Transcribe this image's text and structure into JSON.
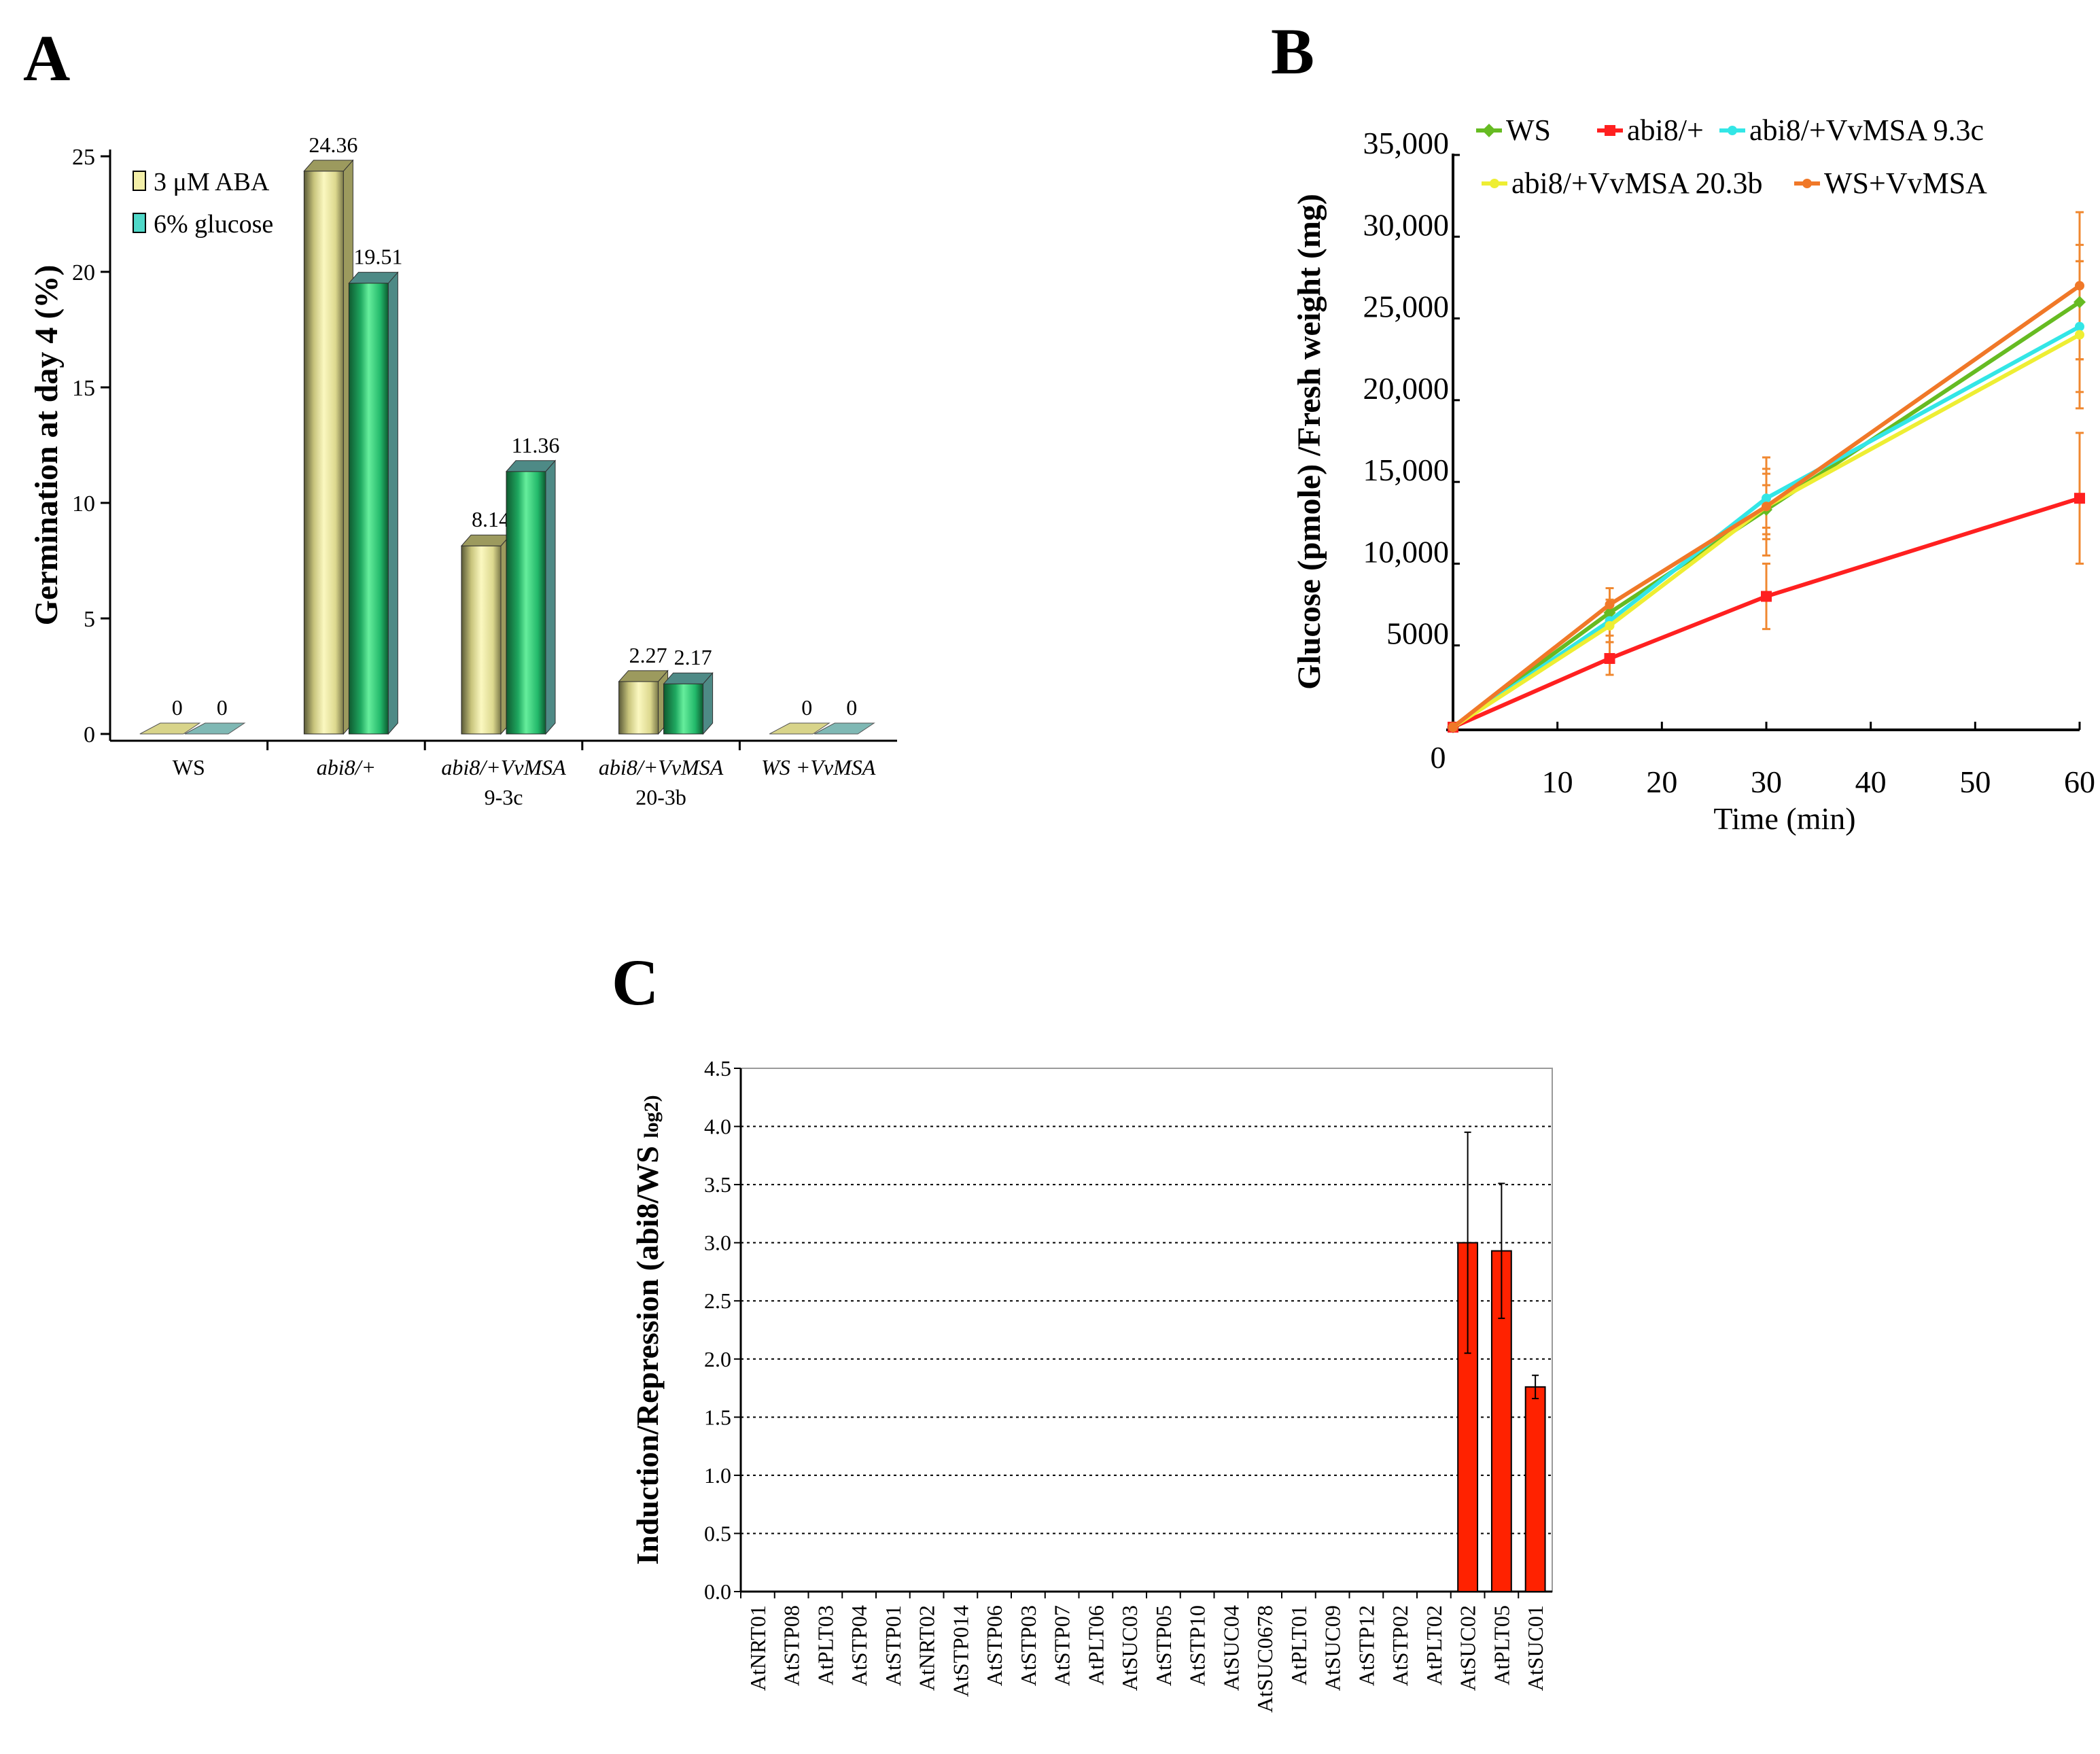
{
  "panels": {
    "a": {
      "letter": "A"
    },
    "b": {
      "letter": "B"
    },
    "c": {
      "letter": "C"
    }
  },
  "chart_data": [
    {
      "id": "A",
      "type": "bar",
      "ylabel": "Germination at day 4 (%)",
      "ylim": [
        0,
        25
      ],
      "yticks": [
        0,
        5,
        10,
        15,
        20,
        25
      ],
      "categories": [
        {
          "label": "WS",
          "sublabel": "",
          "italic": false
        },
        {
          "label": "abi8/+",
          "sublabel": "",
          "italic": true
        },
        {
          "label": "abi8/+VvMSA",
          "sublabel": "9-3c",
          "italic": true
        },
        {
          "label": "abi8/+VvMSA",
          "sublabel": "20-3b",
          "italic": true
        },
        {
          "label": "WS +VvMSA",
          "sublabel": "",
          "italic": true
        }
      ],
      "series": [
        {
          "name": "3 μM ABA",
          "values": [
            0,
            24.36,
            8.14,
            2.27,
            0
          ],
          "labels": [
            "0",
            "24.36",
            "8.14",
            "2.27",
            "0"
          ],
          "color": "#e8e49a",
          "dark": "#9c9a5e"
        },
        {
          "name": "6% glucose",
          "values": [
            0,
            19.51,
            11.36,
            2.17,
            0
          ],
          "labels": [
            "0",
            "19.51",
            "11.36",
            "2.17",
            "0"
          ],
          "color": "#22b46a",
          "dark": "#4e8a86"
        }
      ],
      "legend": "top-left"
    },
    {
      "id": "B",
      "type": "line",
      "ylabel": "Glucose (pmole) /Fresh weight (mg)",
      "xlabel": "Time (min)",
      "xlim": [
        0,
        60
      ],
      "ylim": [
        0,
        35000
      ],
      "xticks": [
        10,
        20,
        30,
        40,
        50,
        60
      ],
      "xorigin_label": "0",
      "yticks": [
        {
          "v": 5000,
          "label": "5000"
        },
        {
          "v": 10000,
          "label": "10,000"
        },
        {
          "v": 15000,
          "label": "15,000"
        },
        {
          "v": 20000,
          "label": "20,000"
        },
        {
          "v": 25000,
          "label": "25,000"
        },
        {
          "v": 30000,
          "label": "30,000"
        },
        {
          "v": 35000,
          "label": "35,000"
        }
      ],
      "x": [
        0,
        15,
        30,
        60
      ],
      "series": [
        {
          "name": "WS",
          "values": [
            0,
            7000,
            13300,
            26000
          ],
          "errors": [
            0,
            800,
            1500,
            3500
          ],
          "color": "#66bb22",
          "marker": "diamond"
        },
        {
          "name": "abi8/+",
          "values": [
            0,
            4200,
            8000,
            14000
          ],
          "errors": [
            0,
            1000,
            2000,
            4000
          ],
          "color": "#ff2020",
          "marker": "square"
        },
        {
          "name": "abi8/+VvMSA 9.3c",
          "values": [
            0,
            6500,
            14000,
            24500
          ],
          "errors": [
            0,
            900,
            1800,
            4000
          ],
          "color": "#33e6e6",
          "marker": "star"
        },
        {
          "name": "abi8/+VvMSA 20.3b",
          "values": [
            0,
            6200,
            13500,
            24000
          ],
          "errors": [
            0,
            1000,
            2000,
            4500
          ],
          "color": "#eeee33",
          "marker": "star"
        },
        {
          "name": "WS+VvMSA",
          "values": [
            0,
            7500,
            13500,
            27000
          ],
          "errors": [
            0,
            1000,
            3000,
            4500
          ],
          "color": "#f07828",
          "marker": "star"
        }
      ],
      "legend": "top"
    },
    {
      "id": "C",
      "type": "bar",
      "ylabel": "Induction/Repression (abi8/WS log2)",
      "ylabel_main": "Induction/Repression (abi8/WS",
      "ylabel_sub": "log2)",
      "ylim": [
        0,
        4.5
      ],
      "yticks": [
        "0.0",
        "0.5",
        "1.0",
        "1.5",
        "2.0",
        "2.5",
        "3.0",
        "3.5",
        "4.0",
        "4.5"
      ],
      "categories": [
        "AtNRT01",
        "AtSTP08",
        "AtPLT03",
        "AtSTP04",
        "AtSTP01",
        "AtNRT02",
        "AtSTP014",
        "AtSTP06",
        "AtSTP03",
        "AtSTP07",
        "AtPLT06",
        "AtSUC03",
        "AtSTP05",
        "AtSTP10",
        "AtSUC04",
        "AtSUC0678",
        "AtPLT01",
        "AtSUC09",
        "AtSTP12",
        "AtSTP02",
        "AtPLT02",
        "AtSUC02",
        "AtPLT05",
        "AtSUC01"
      ],
      "values": [
        0,
        0,
        0,
        0,
        0,
        0,
        0,
        0,
        0,
        0,
        0,
        0,
        0,
        0,
        0,
        0,
        0,
        0,
        0,
        0,
        0,
        3.0,
        2.93,
        1.76
      ],
      "errors": [
        0,
        0,
        0,
        0,
        0,
        0,
        0,
        0,
        0,
        0,
        0,
        0,
        0,
        0,
        0,
        0,
        0,
        0,
        0,
        0,
        0,
        0.95,
        0.58,
        0.1
      ],
      "color": "#ff2200",
      "grid": true
    }
  ]
}
